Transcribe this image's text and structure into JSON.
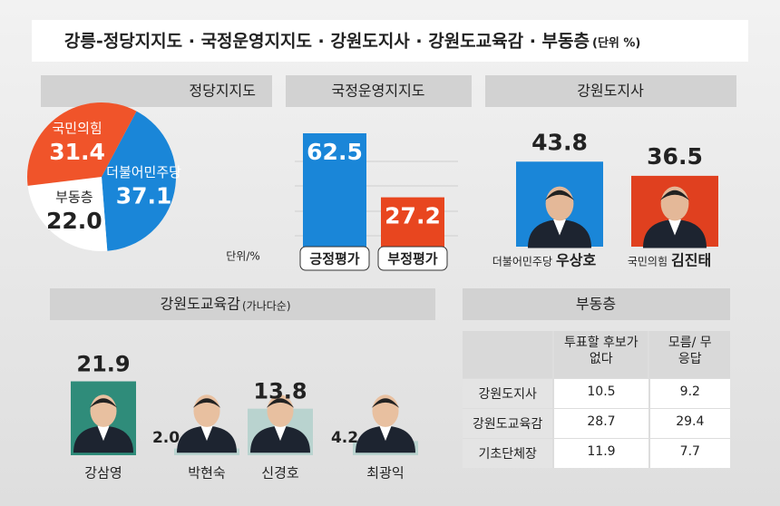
{
  "title": "강릉-정당지지도 · 국정운영지지도 · 강원도지사 · 강원도교육감 · 부동층",
  "unit": "(단위 %)",
  "chart_data": [
    {
      "type": "pie",
      "title": "정당지지도",
      "unit": "단위/%",
      "categories": [
        "더불어민주당",
        "부동층",
        "국민의힘"
      ],
      "values": [
        37.1,
        22.0,
        31.4
      ],
      "value_labels": [
        "37.1",
        "22.0",
        "31.4"
      ],
      "colors": [
        "#1a86d8",
        "#ffffff",
        "#f0542a"
      ]
    },
    {
      "type": "bar",
      "title": "국정운영지지도",
      "categories": [
        "긍정평가",
        "부정평가"
      ],
      "values": [
        62.5,
        27.2
      ],
      "colors": [
        "#1a86d8",
        "#e8461f"
      ],
      "ylim": [
        0,
        70
      ]
    },
    {
      "type": "bar",
      "title": "강원도지사",
      "categories": [
        "우상호",
        "김진태"
      ],
      "parties": [
        "더불어민주당",
        "국민의힘"
      ],
      "values": [
        43.8,
        36.5
      ],
      "colors": [
        "#1a86d8",
        "#e0401f"
      ],
      "ylim": [
        0,
        50
      ]
    },
    {
      "type": "bar",
      "title": "강원도교육감",
      "subtitle": "(가나다순)",
      "categories": [
        "강삼영",
        "박현숙",
        "신경호",
        "최광익"
      ],
      "values": [
        21.9,
        2.0,
        13.8,
        4.2
      ],
      "value_labels": [
        "21.9",
        "2.0",
        "13.8",
        "4.2"
      ],
      "color": "#b9d3cf",
      "ylim": [
        0,
        25
      ]
    },
    {
      "type": "table",
      "title": "부동층",
      "columns": [
        "투표할 후보가 없다",
        "모름/ 무응답"
      ],
      "rows": [
        "강원도지사",
        "강원도교육감",
        "기초단체장"
      ],
      "values": [
        [
          10.5,
          9.2
        ],
        [
          28.7,
          29.4
        ],
        [
          11.9,
          7.7
        ]
      ]
    }
  ]
}
